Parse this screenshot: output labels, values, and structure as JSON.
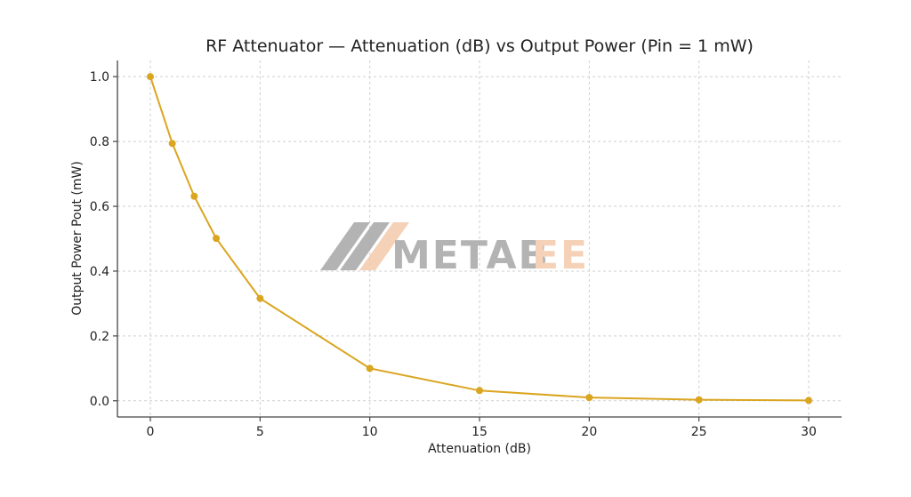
{
  "chart_data": {
    "type": "line",
    "title": "RF Attenuator — Attenuation (dB) vs Output Power (Pin = 1 mW)",
    "xlabel": "Attenuation (dB)",
    "ylabel": "Output Power Pout (mW)",
    "xlim": [
      -1.5,
      31.5
    ],
    "ylim": [
      -0.05,
      1.05
    ],
    "xticks": [
      0,
      5,
      10,
      15,
      20,
      25,
      30
    ],
    "yticks": [
      0.0,
      0.2,
      0.4,
      0.6,
      0.8,
      1.0
    ],
    "grid": true,
    "series": [
      {
        "x": [
          0,
          1,
          2,
          3,
          5,
          10,
          15,
          20,
          25,
          30
        ],
        "y": [
          1.0,
          0.794,
          0.631,
          0.501,
          0.316,
          0.1,
          0.0316,
          0.01,
          0.00316,
          0.001
        ],
        "color": "#DAA520",
        "marker": "circle"
      }
    ]
  },
  "watermark": {
    "text_left": "METAB",
    "text_right": "EE",
    "color_gray": "#a6a6a6",
    "color_orange": "#f3c9ab"
  }
}
